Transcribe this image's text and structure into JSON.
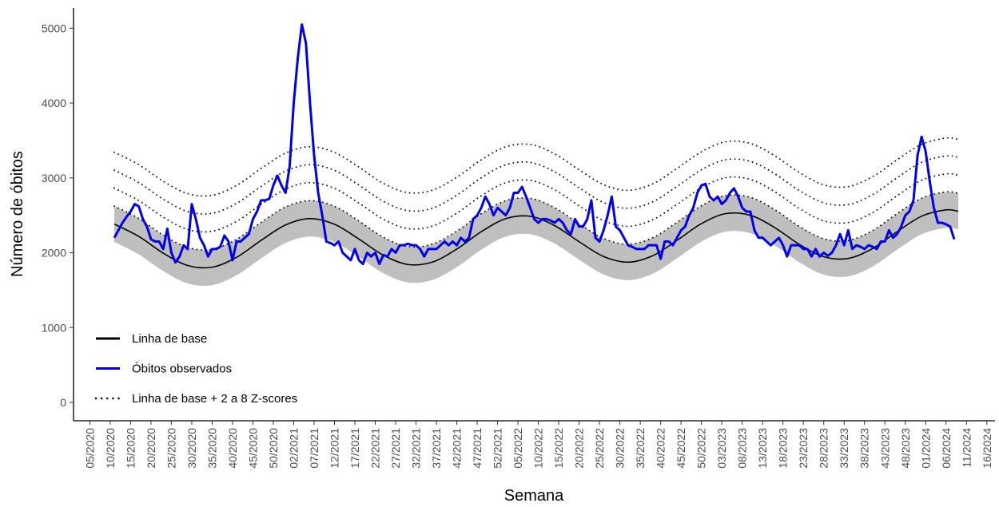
{
  "chart_data": {
    "type": "line",
    "x_label": "Semana",
    "y_label": "Número de óbitos",
    "xlim": [
      -4,
      222
    ],
    "ylim": [
      -245,
      5270
    ],
    "yticks": [
      0,
      1000,
      2000,
      3000,
      4000,
      5000
    ],
    "xticks": [
      {
        "value": 0,
        "label": "05/2020"
      },
      {
        "value": 5,
        "label": "10/2020"
      },
      {
        "value": 10,
        "label": "15/2020"
      },
      {
        "value": 15,
        "label": "20/2020"
      },
      {
        "value": 20,
        "label": "25/2020"
      },
      {
        "value": 25,
        "label": "30/2020"
      },
      {
        "value": 30,
        "label": "35/2020"
      },
      {
        "value": 35,
        "label": "40/2020"
      },
      {
        "value": 40,
        "label": "45/2020"
      },
      {
        "value": 45,
        "label": "50/2020"
      },
      {
        "value": 50,
        "label": "02/2021"
      },
      {
        "value": 55,
        "label": "07/2021"
      },
      {
        "value": 60,
        "label": "12/2021"
      },
      {
        "value": 65,
        "label": "17/2021"
      },
      {
        "value": 70,
        "label": "22/2021"
      },
      {
        "value": 75,
        "label": "27/2021"
      },
      {
        "value": 80,
        "label": "32/2021"
      },
      {
        "value": 85,
        "label": "37/2021"
      },
      {
        "value": 90,
        "label": "42/2021"
      },
      {
        "value": 95,
        "label": "47/2021"
      },
      {
        "value": 100,
        "label": "52/2021"
      },
      {
        "value": 105,
        "label": "05/2022"
      },
      {
        "value": 110,
        "label": "10/2022"
      },
      {
        "value": 115,
        "label": "15/2022"
      },
      {
        "value": 120,
        "label": "20/2022"
      },
      {
        "value": 125,
        "label": "25/2022"
      },
      {
        "value": 130,
        "label": "30/2022"
      },
      {
        "value": 135,
        "label": "35/2022"
      },
      {
        "value": 140,
        "label": "40/2022"
      },
      {
        "value": 145,
        "label": "45/2022"
      },
      {
        "value": 150,
        "label": "50/2022"
      },
      {
        "value": 155,
        "label": "03/2023"
      },
      {
        "value": 160,
        "label": "08/2023"
      },
      {
        "value": 165,
        "label": "13/2023"
      },
      {
        "value": 170,
        "label": "18/2023"
      },
      {
        "value": 175,
        "label": "23/2023"
      },
      {
        "value": 180,
        "label": "28/2023"
      },
      {
        "value": 185,
        "label": "33/2023"
      },
      {
        "value": 190,
        "label": "38/2023"
      },
      {
        "value": 195,
        "label": "43/2023"
      },
      {
        "value": 200,
        "label": "48/2023"
      },
      {
        "value": 205,
        "label": "01/2024"
      },
      {
        "value": 210,
        "label": "06/2024"
      },
      {
        "value": 215,
        "label": "11/2024"
      },
      {
        "value": 220,
        "label": "16/2024"
      }
    ],
    "grid": false,
    "legend_position": "bottom-left",
    "band": {
      "color": "#bfbfbf",
      "x": [
        6,
        12,
        18,
        24,
        30,
        36,
        42,
        48,
        54,
        60,
        66,
        72,
        78,
        84,
        90,
        96,
        102,
        108,
        114,
        120,
        126,
        132,
        138,
        144,
        150,
        156,
        162,
        168,
        174,
        180,
        186,
        192,
        198,
        204,
        210,
        213
      ],
      "lower": [
        2143,
        1978,
        1755,
        1590,
        1567,
        1700,
        1925,
        2131,
        2216,
        2140,
        1943,
        1727,
        1603,
        1635,
        1809,
        2041,
        2215,
        2247,
        2122,
        1907,
        1710,
        1634,
        1719,
        1925,
        2149,
        2283,
        2260,
        2095,
        1872,
        1707,
        1684,
        1817,
        2042,
        2248,
        2333,
        2314
      ],
      "upper": [
        2623,
        2458,
        2235,
        2070,
        2047,
        2180,
        2405,
        2611,
        2696,
        2620,
        2423,
        2207,
        2083,
        2115,
        2289,
        2521,
        2695,
        2727,
        2602,
        2387,
        2190,
        2114,
        2199,
        2405,
        2629,
        2763,
        2740,
        2575,
        2352,
        2187,
        2164,
        2297,
        2522,
        2728,
        2813,
        2794
      ]
    },
    "series": [
      {
        "name": "Linha de base",
        "color": "#000000",
        "style": "solid",
        "width": 1.6,
        "x": [
          6,
          12,
          18,
          24,
          30,
          36,
          42,
          48,
          54,
          60,
          66,
          72,
          78,
          84,
          90,
          96,
          102,
          108,
          114,
          120,
          126,
          132,
          138,
          144,
          150,
          156,
          162,
          168,
          174,
          180,
          186,
          192,
          198,
          204,
          210,
          213
        ],
        "values": [
          2383,
          2218,
          1995,
          1830,
          1807,
          1940,
          2165,
          2371,
          2456,
          2380,
          2183,
          1967,
          1843,
          1875,
          2049,
          2281,
          2455,
          2487,
          2362,
          2147,
          1950,
          1874,
          1959,
          2165,
          2389,
          2523,
          2500,
          2335,
          2112,
          1947,
          1924,
          2057,
          2282,
          2488,
          2573,
          2554
        ]
      },
      {
        "name": "Óbitos observados",
        "color": "#0000ee",
        "style": "solid",
        "width": 3,
        "x": [
          6,
          7,
          8,
          9,
          10,
          11,
          12,
          13,
          14,
          15,
          16,
          17,
          18,
          19,
          20,
          21,
          22,
          23,
          24,
          25,
          26,
          27,
          28,
          29,
          30,
          31,
          32,
          33,
          34,
          35,
          36,
          37,
          38,
          39,
          40,
          41,
          42,
          43,
          44,
          45,
          46,
          47,
          48,
          49,
          50,
          51,
          52,
          53,
          54,
          55,
          56,
          57,
          58,
          59,
          60,
          61,
          62,
          63,
          64,
          65,
          66,
          67,
          68,
          69,
          70,
          71,
          72,
          73,
          74,
          75,
          76,
          77,
          78,
          79,
          80,
          81,
          82,
          83,
          84,
          85,
          86,
          87,
          88,
          89,
          90,
          91,
          92,
          93,
          94,
          95,
          96,
          97,
          98,
          99,
          100,
          101,
          102,
          103,
          104,
          105,
          106,
          107,
          108,
          109,
          110,
          111,
          112,
          113,
          114,
          115,
          116,
          117,
          118,
          119,
          120,
          121,
          122,
          123,
          124,
          125,
          126,
          127,
          128,
          129,
          130,
          131,
          132,
          133,
          134,
          135,
          136,
          137,
          138,
          139,
          140,
          141,
          142,
          143,
          144,
          145,
          146,
          147,
          148,
          149,
          150,
          151,
          152,
          153,
          154,
          155,
          156,
          157,
          158,
          159,
          160,
          161,
          162,
          163,
          164,
          165,
          166,
          167,
          168,
          169,
          170,
          171,
          172,
          173,
          174,
          175,
          176,
          177,
          178,
          179,
          180,
          181,
          182,
          183,
          184,
          185,
          186,
          187,
          188,
          189,
          190,
          191,
          192,
          193,
          194,
          195,
          196,
          197,
          198,
          199,
          200,
          201,
          202,
          203,
          204,
          205,
          206,
          207,
          208,
          209,
          210,
          211,
          212
        ],
        "values": [
          2200,
          2300,
          2400,
          2480,
          2550,
          2650,
          2620,
          2450,
          2350,
          2180,
          2150,
          2150,
          2050,
          2320,
          2000,
          1870,
          1950,
          2100,
          2050,
          2650,
          2450,
          2200,
          2100,
          1950,
          2050,
          2050,
          2080,
          2230,
          2150,
          1900,
          2150,
          2150,
          2200,
          2250,
          2450,
          2550,
          2700,
          2700,
          2720,
          2900,
          3030,
          2900,
          2800,
          3150,
          4000,
          4600,
          5050,
          4800,
          4000,
          3300,
          2800,
          2500,
          2150,
          2130,
          2100,
          2150,
          2000,
          1950,
          1900,
          2050,
          1900,
          1850,
          2000,
          1950,
          2000,
          1850,
          1970,
          1950,
          2050,
          2000,
          2100,
          2100,
          2120,
          2100,
          2100,
          2050,
          1950,
          2050,
          2050,
          2050,
          2100,
          2150,
          2100,
          2150,
          2100,
          2200,
          2150,
          2200,
          2450,
          2500,
          2600,
          2750,
          2650,
          2500,
          2600,
          2550,
          2500,
          2600,
          2800,
          2800,
          2880,
          2750,
          2600,
          2450,
          2400,
          2450,
          2450,
          2430,
          2400,
          2450,
          2400,
          2300,
          2250,
          2450,
          2350,
          2350,
          2450,
          2700,
          2200,
          2150,
          2300,
          2500,
          2750,
          2350,
          2300,
          2200,
          2100,
          2080,
          2050,
          2050,
          2050,
          2100,
          2100,
          2100,
          1920,
          2150,
          2150,
          2100,
          2200,
          2300,
          2350,
          2500,
          2600,
          2800,
          2900,
          2920,
          2750,
          2700,
          2750,
          2650,
          2700,
          2800,
          2860,
          2750,
          2600,
          2550,
          2550,
          2300,
          2200,
          2200,
          2150,
          2100,
          2150,
          2200,
          2100,
          1950,
          2100,
          2100,
          2100,
          2050,
          2050,
          1950,
          2050,
          1950,
          2000,
          1960,
          2000,
          2100,
          2250,
          2100,
          2300,
          2050,
          2100,
          2080,
          2050,
          2100,
          2080,
          2050,
          2150,
          2150,
          2300,
          2200,
          2250,
          2350,
          2500,
          2550,
          2700,
          3300,
          3550,
          3350,
          2950,
          2600,
          2400,
          2400,
          2380,
          2350,
          2180
        ]
      },
      {
        "name": "Linha de base + 2 a 8 Z-scores",
        "color": "#000000",
        "style": "dotted",
        "width": 1.8,
        "x": [
          6,
          12,
          18,
          24,
          30,
          36,
          42,
          48,
          54,
          60,
          66,
          72,
          78,
          84,
          90,
          96,
          102,
          108,
          114,
          120,
          126,
          132,
          138,
          144,
          150,
          156,
          162,
          168,
          174,
          180,
          186,
          192,
          198,
          204,
          210,
          213
        ],
        "lines": [
          [
            2623,
            2458,
            2235,
            2070,
            2047,
            2180,
            2405,
            2611,
            2696,
            2620,
            2423,
            2207,
            2083,
            2115,
            2289,
            2521,
            2695,
            2727,
            2602,
            2387,
            2190,
            2114,
            2199,
            2405,
            2629,
            2763,
            2740,
            2575,
            2352,
            2187,
            2164,
            2297,
            2522,
            2728,
            2813,
            2794
          ],
          [
            2863,
            2698,
            2475,
            2310,
            2287,
            2420,
            2645,
            2851,
            2936,
            2860,
            2663,
            2447,
            2323,
            2355,
            2529,
            2761,
            2935,
            2967,
            2842,
            2627,
            2430,
            2354,
            2439,
            2645,
            2869,
            3003,
            2980,
            2815,
            2592,
            2427,
            2404,
            2537,
            2762,
            2968,
            3053,
            3034
          ],
          [
            3103,
            2938,
            2715,
            2550,
            2527,
            2660,
            2885,
            3091,
            3176,
            3100,
            2903,
            2687,
            2563,
            2595,
            2769,
            3001,
            3175,
            3207,
            3082,
            2867,
            2670,
            2594,
            2679,
            2885,
            3109,
            3243,
            3220,
            3055,
            2832,
            2667,
            2644,
            2777,
            3002,
            3208,
            3293,
            3274
          ],
          [
            3343,
            3178,
            2955,
            2790,
            2767,
            2900,
            3125,
            3331,
            3416,
            3340,
            3143,
            2927,
            2803,
            2835,
            3009,
            3241,
            3415,
            3447,
            3322,
            3107,
            2910,
            2834,
            2919,
            3125,
            3349,
            3483,
            3460,
            3295,
            3072,
            2907,
            2884,
            3017,
            3242,
            3448,
            3533,
            3514
          ]
        ]
      }
    ]
  }
}
